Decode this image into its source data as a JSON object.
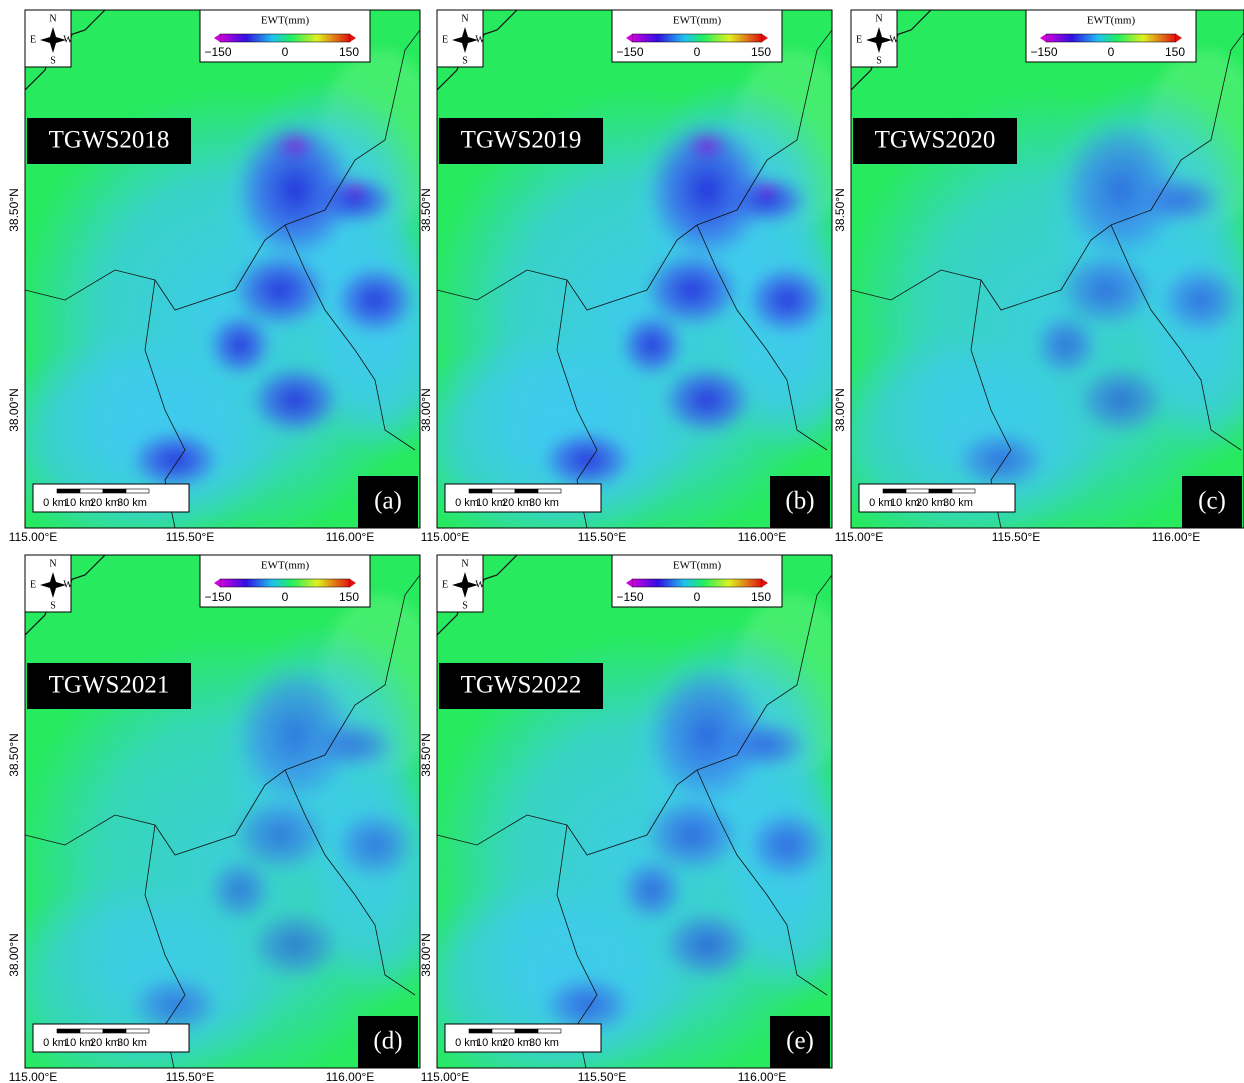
{
  "panels": [
    {
      "label": "TGWS2018",
      "letter": "(a)"
    },
    {
      "label": "TGWS2019",
      "letter": "(b)"
    },
    {
      "label": "TGWS2020",
      "letter": "(c)"
    },
    {
      "label": "TGWS2021",
      "letter": "(d)"
    },
    {
      "label": "TGWS2022",
      "letter": "(e)"
    }
  ],
  "legend": {
    "title": "EWT(mm)",
    "ticks": [
      "−150",
      "0",
      "150"
    ]
  },
  "compass": {
    "n": "N",
    "s": "S",
    "e": "E",
    "w": "W"
  },
  "scale_bar": {
    "labels": [
      "0 km",
      "10 km",
      "20 km",
      "30 km"
    ]
  },
  "x_axis": {
    "labels": [
      "115.00°E",
      "115.50°E",
      "116.00°E"
    ]
  },
  "y_axis": {
    "labels": [
      "38.50°N",
      "38.00°N"
    ]
  }
}
